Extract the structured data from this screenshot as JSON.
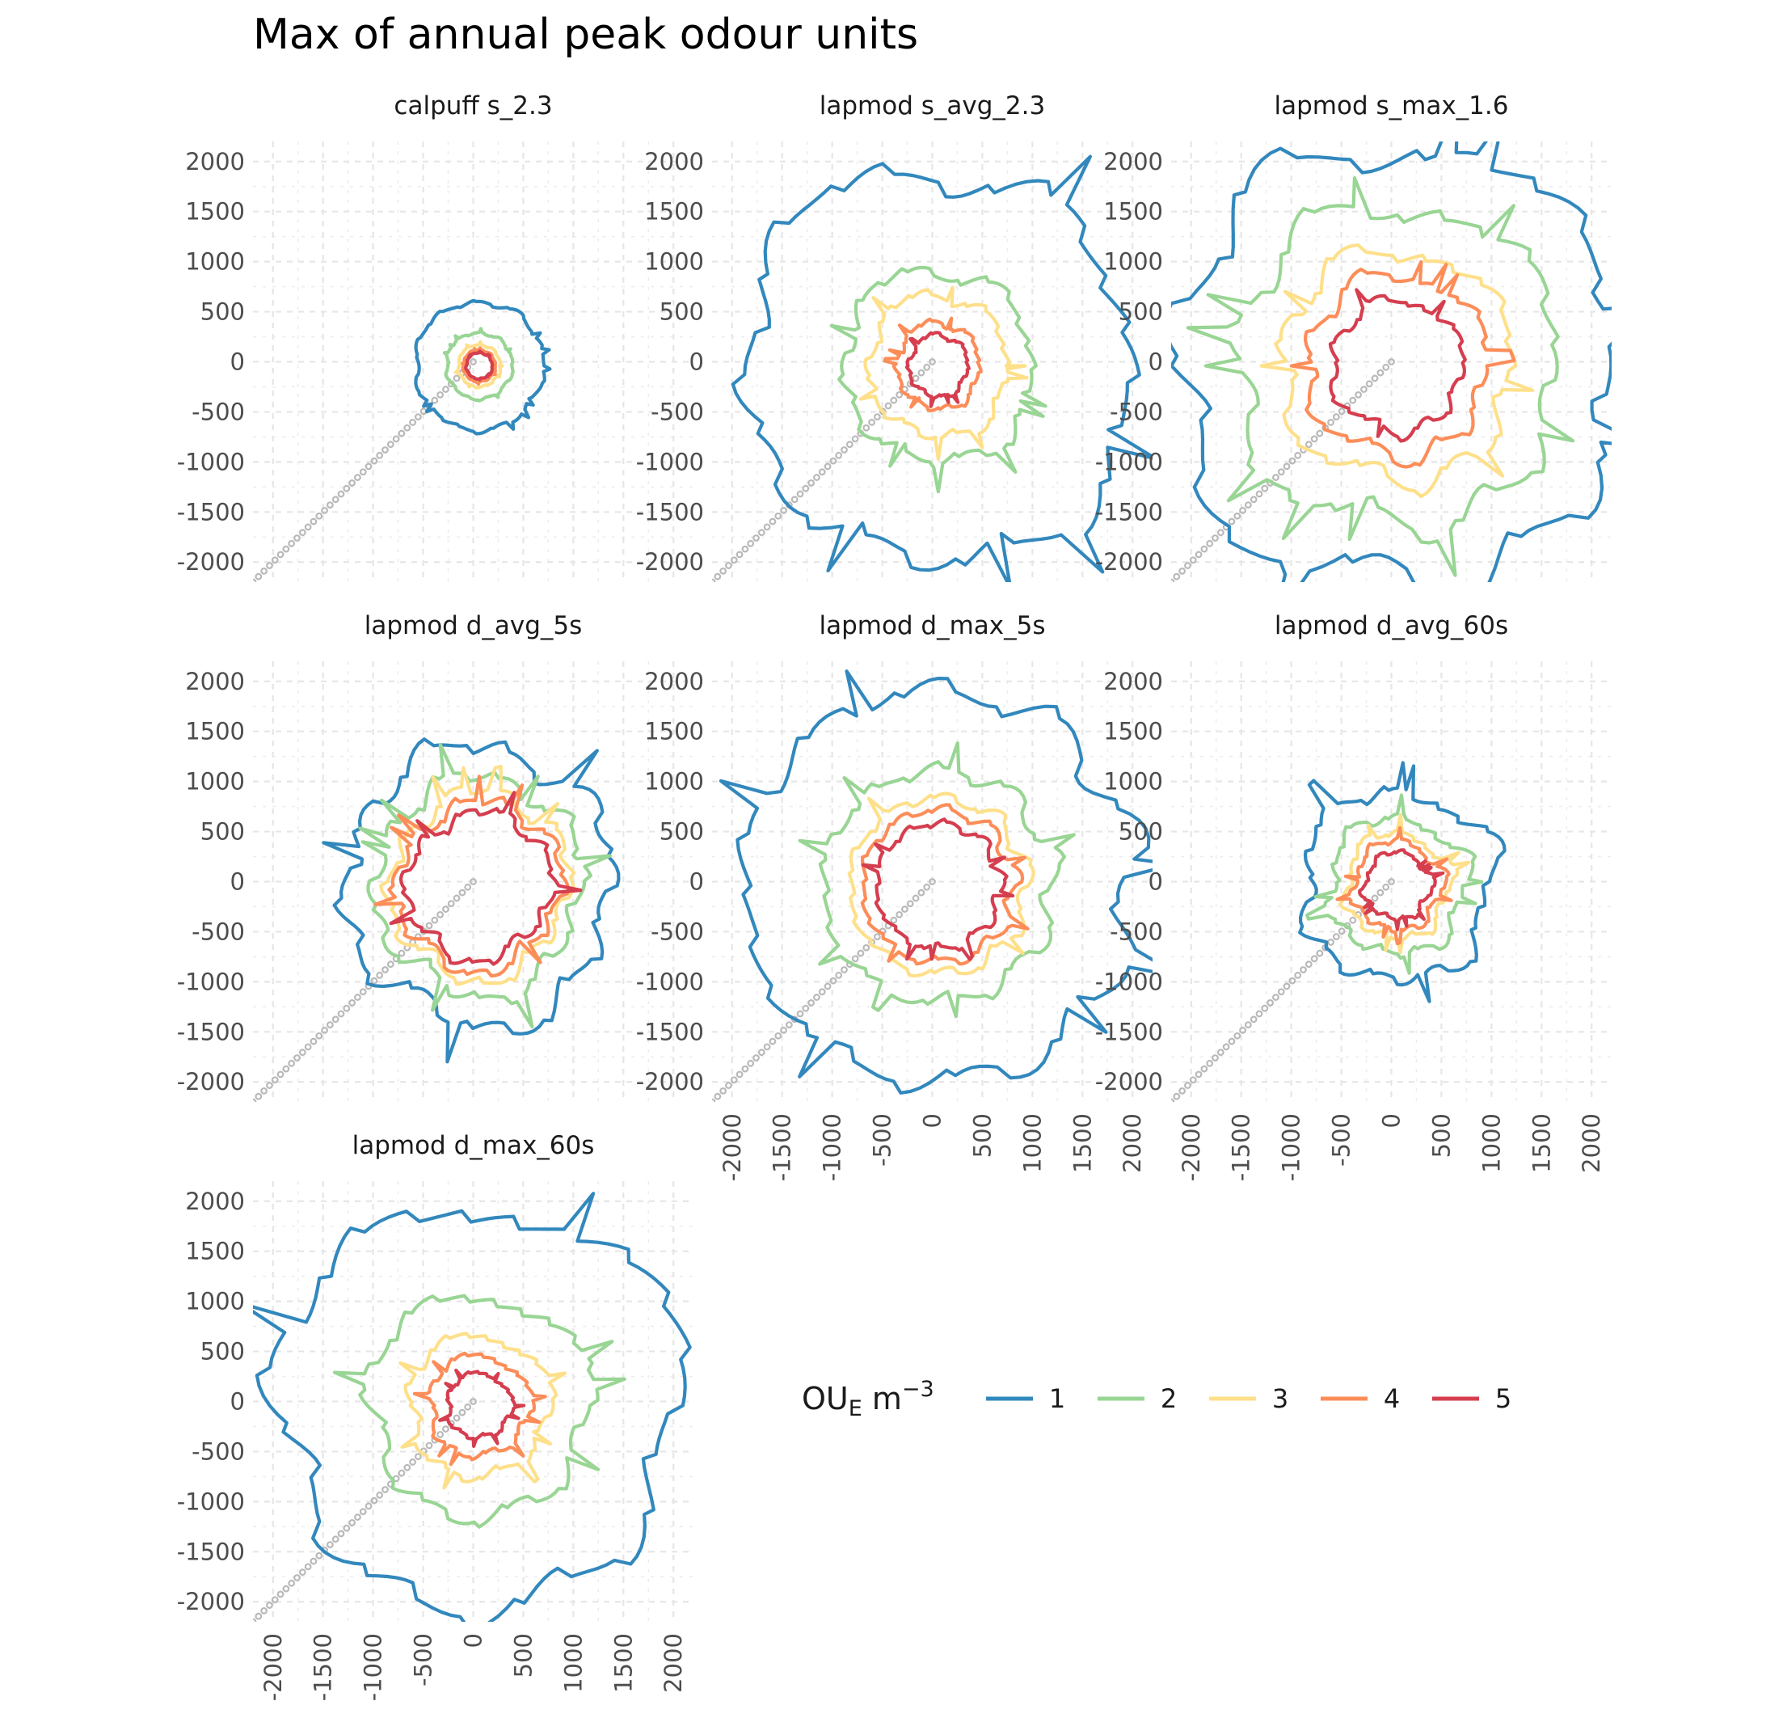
{
  "chart_data": {
    "type": "contour",
    "title": "Max of annual peak odour units",
    "axis": {
      "xlim": [
        -2200,
        2200
      ],
      "ylim": [
        -2200,
        2200
      ],
      "x_ticks": [
        -2000,
        -1500,
        -1000,
        -500,
        0,
        500,
        1000,
        1500,
        2000
      ],
      "y_ticks": [
        -2000,
        -1500,
        -1000,
        -500,
        0,
        500,
        1000,
        1500,
        2000
      ],
      "tick_labels": [
        "-2000",
        "-1500",
        "-1000",
        "-500",
        "0",
        "500",
        "1000",
        "1500",
        "2000"
      ],
      "grid": true
    },
    "legend": {
      "title_base": "OU",
      "title_sub": "E",
      "title_unit": " m",
      "title_sup": "−3",
      "position": "bottom-right",
      "levels": [
        {
          "label": "1",
          "value": 1,
          "color": "#3288bd"
        },
        {
          "label": "2",
          "value": 2,
          "color": "#99d594"
        },
        {
          "label": "3",
          "value": 3,
          "color": "#fee08b"
        },
        {
          "label": "4",
          "value": 4,
          "color": "#fc8d59"
        },
        {
          "label": "5",
          "value": 5,
          "color": "#d53e4f"
        }
      ]
    },
    "panels": [
      {
        "label": "calpuff s_2.3",
        "radii": [
          640,
          330,
          210,
          160,
          130
        ],
        "spikiness": 0.12,
        "seed": 3,
        "show_x_axis": false
      },
      {
        "label": "lapmod s_avg_2.3",
        "radii": [
          1950,
          950,
          700,
          420,
          300
        ],
        "spikiness": 0.3,
        "seed": 7,
        "show_x_axis": false
      },
      {
        "label": "lapmod s_max_1.6",
        "radii": [
          2200,
          1600,
          1150,
          900,
          650
        ],
        "spikiness": 0.28,
        "seed": 11,
        "show_x_axis": false
      },
      {
        "label": "lapmod d_avg_5s",
        "radii": [
          1350,
          1050,
          900,
          820,
          720
        ],
        "spikiness": 0.32,
        "seed": 17,
        "show_x_axis": false
      },
      {
        "label": "lapmod d_max_5s",
        "radii": [
          1950,
          1150,
          880,
          760,
          620
        ],
        "spikiness": 0.26,
        "seed": 23,
        "show_x_axis": true
      },
      {
        "label": "lapmod d_avg_60s",
        "radii": [
          950,
          680,
          520,
          440,
          330
        ],
        "spikiness": 0.3,
        "seed": 29,
        "show_x_axis": true
      },
      {
        "label": "lapmod d_max_60s",
        "radii": [
          2000,
          1100,
          700,
          500,
          320
        ],
        "spikiness": 0.3,
        "seed": 31,
        "show_x_axis": true
      }
    ]
  }
}
